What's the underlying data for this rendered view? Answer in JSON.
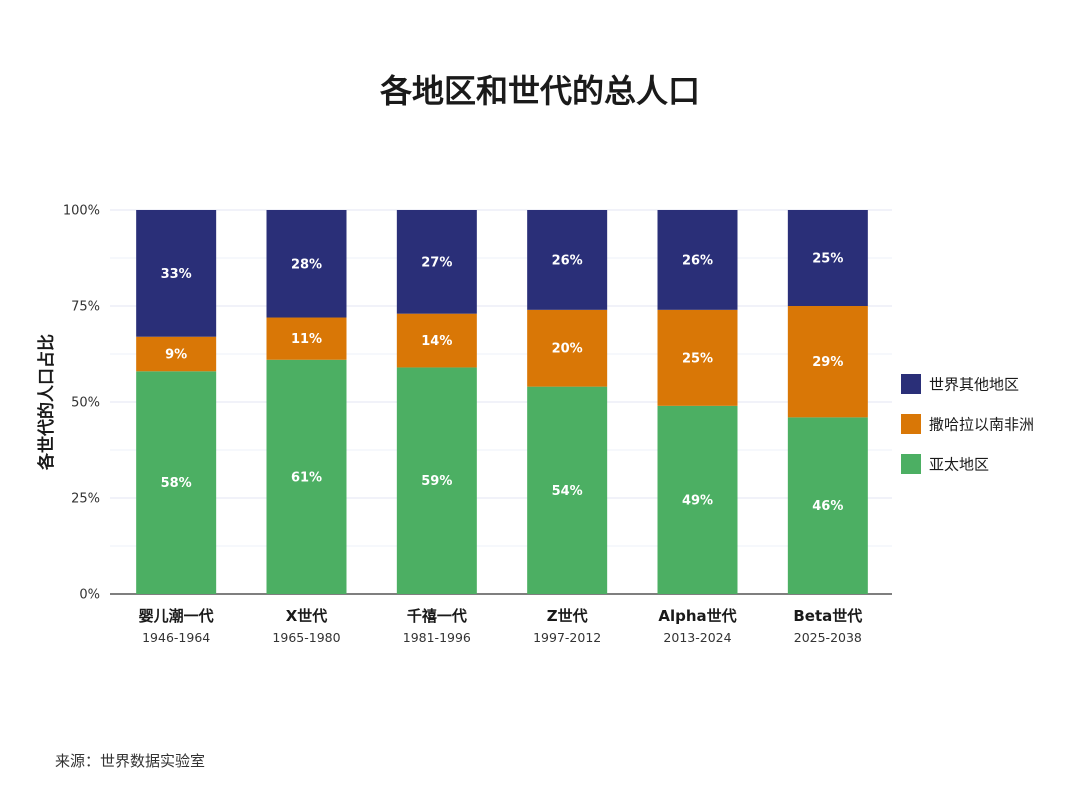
{
  "chart_data": {
    "type": "bar",
    "stacked": true,
    "title": "各地区和世代的总人口",
    "ylabel": "各世代的人口占比",
    "ylim": [
      0,
      100
    ],
    "yticks": [
      "0%",
      "25%",
      "50%",
      "75%",
      "100%"
    ],
    "ytick_values": [
      0,
      25,
      50,
      75,
      100
    ],
    "grid": true,
    "legend_position": "right",
    "categories": [
      "婴儿潮一代",
      "X世代",
      "千禧一代",
      "Z世代",
      "Alpha世代",
      "Beta世代"
    ],
    "category_years": [
      "1946-1964",
      "1965-1980",
      "1981-1996",
      "1997-2012",
      "2013-2024",
      "2025-2038"
    ],
    "series": [
      {
        "name": "亚太地区",
        "color": "#4caf63",
        "values": [
          58,
          61,
          59,
          54,
          49,
          46
        ],
        "labels": [
          "58%",
          "61%",
          "59%",
          "54%",
          "49%",
          "46%"
        ]
      },
      {
        "name": "撒哈拉以南非洲",
        "color": "#d97706",
        "values": [
          9,
          11,
          14,
          20,
          25,
          29
        ],
        "labels": [
          "9%",
          "11%",
          "14%",
          "20%",
          "25%",
          "29%"
        ]
      },
      {
        "name": "世界其他地区",
        "color": "#2a2f78",
        "values": [
          33,
          28,
          27,
          26,
          26,
          25
        ],
        "labels": [
          "33%",
          "28%",
          "27%",
          "26%",
          "26%",
          "25%"
        ]
      }
    ],
    "legend_order": [
      "世界其他地区",
      "撒哈拉以南非洲",
      "亚太地区"
    ]
  },
  "source": "来源：世界数据实验室"
}
